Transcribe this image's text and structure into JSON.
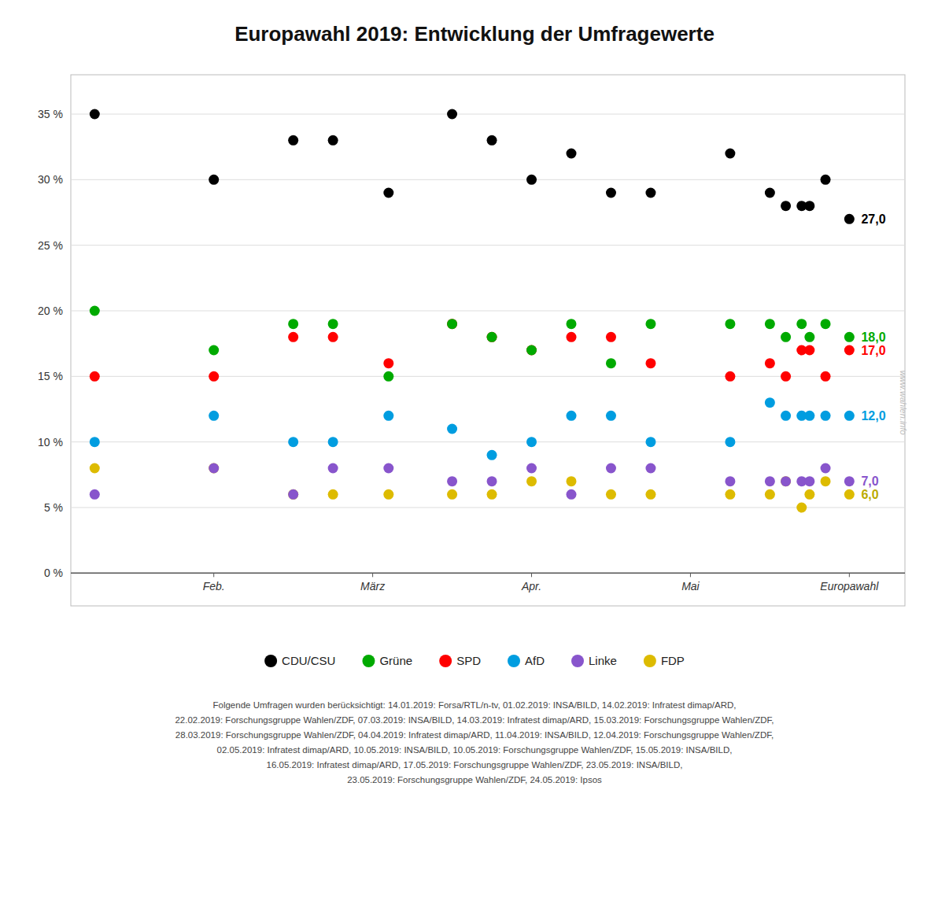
{
  "chart_data": {
    "type": "scatter",
    "title": "Europawahl 2019: Entwicklung der Umfragewerte",
    "x": [
      0.0,
      1.5,
      2.5,
      3.0,
      3.7,
      4.5,
      5.0,
      5.5,
      6.0,
      6.5,
      7.0,
      8.0,
      8.5,
      8.7,
      8.9,
      9.0,
      9.2,
      9.5
    ],
    "series": [
      {
        "name": "CDU/CSU",
        "color": "#000000",
        "values": [
          35,
          30,
          33,
          33,
          29,
          35,
          33,
          30,
          32,
          29,
          29,
          32,
          29,
          28,
          28,
          28,
          30,
          27
        ]
      },
      {
        "name": "Grüne",
        "color": "#00aa00",
        "values": [
          20,
          17,
          19,
          19,
          15,
          19,
          18,
          17,
          19,
          16,
          19,
          19,
          19,
          18,
          19,
          18,
          19,
          18
        ]
      },
      {
        "name": "SPD",
        "color": "#ff0000",
        "values": [
          15,
          15,
          18,
          18,
          16,
          19,
          18,
          17,
          18,
          18,
          16,
          15,
          16,
          15,
          17,
          17,
          15,
          17
        ]
      },
      {
        "name": "AfD",
        "color": "#009de0",
        "values": [
          10,
          12,
          10,
          10,
          12,
          11,
          9,
          10,
          12,
          12,
          10,
          10,
          13,
          12,
          12,
          12,
          12,
          12
        ]
      },
      {
        "name": "Linke",
        "color": "#8855cc",
        "values": [
          6,
          8,
          6,
          8,
          8,
          7,
          7,
          8,
          6,
          8,
          8,
          7,
          7,
          7,
          7,
          7,
          8,
          7
        ]
      },
      {
        "name": "FDP",
        "color": "#ddbb00",
        "values": [
          8,
          8,
          6,
          6,
          6,
          6,
          6,
          7,
          7,
          6,
          6,
          6,
          6,
          7,
          5,
          6,
          7,
          6
        ]
      }
    ],
    "xlim": [
      -0.3,
      10.2
    ],
    "xticks": [
      {
        "value": 1.5,
        "label": "Feb."
      },
      {
        "value": 3.5,
        "label": "März"
      },
      {
        "value": 5.5,
        "label": "Apr."
      },
      {
        "value": 7.5,
        "label": "Mai"
      },
      {
        "value": 9.5,
        "label": "Europawahl"
      }
    ],
    "ylim": [
      -2.5,
      38
    ],
    "yticks": [
      {
        "value": 0,
        "label": "0 %"
      },
      {
        "value": 5,
        "label": "5 %"
      },
      {
        "value": 10,
        "label": "10 %"
      },
      {
        "value": 15,
        "label": "15 %"
      },
      {
        "value": 20,
        "label": "20 %"
      },
      {
        "value": 25,
        "label": "25 %"
      },
      {
        "value": 30,
        "label": "30 %"
      },
      {
        "value": 35,
        "label": "35 %"
      }
    ],
    "grid": true,
    "legend": "bottom",
    "annotations": [
      {
        "text": "27,0",
        "x": 9.65,
        "y": 27,
        "color": "#000000"
      },
      {
        "text": "18,0",
        "x": 9.65,
        "y": 18,
        "color": "#00aa00"
      },
      {
        "text": "17,0",
        "x": 9.65,
        "y": 17,
        "color": "#ff0000"
      },
      {
        "text": "12,0",
        "x": 9.65,
        "y": 12,
        "color": "#009de0"
      },
      {
        "text": "7,0",
        "x": 9.65,
        "y": 7,
        "color": "#8855cc"
      },
      {
        "text": "6,0",
        "x": 9.65,
        "y": 6,
        "color": "#bbaa00"
      },
      {
        "text": "www.wahlen.info",
        "x": 10.18,
        "y": 13,
        "color": "#bbbbbb"
      },
      {
        "text": "Folgende Umfragen wurden berücksichtigt: 14.01.2019: Forsa/RTL/n-tv, 01.02.2019: INSA/BILD, 14.02.2019: Infratest dimap/ARD,\n22.02.2019: Forschungsgruppe Wahlen/ZDF, 07.03.2019: INSA/BILD, 14.03.2019: Infratest dimap/ARD, 15.03.2019: Forschungsgruppe Wahlen/ZDF,\n28.03.2019: Forschungsgruppe Wahlen/ZDF, 04.04.2019: Infratest dimap/ARD, 11.04.2019: INSA/BILD, 12.04.2019: Forschungsgruppe Wahlen/ZDF,\n02.05.2019: Infratest dimap/ARD, 10.05.2019: INSA/BILD, 10.05.2019: Forschungsgruppe Wahlen/ZDF, 15.05.2019: INSA/BILD,\n16.05.2019: Infratest dimap/ARD, 17.05.2019: Forschungsgruppe Wahlen/ZDF, 23.05.2019: INSA/BILD,\n23.05.2019: Forschungsgruppe Wahlen/ZDF, 24.05.2019: Ipsos"
      }
    ]
  }
}
